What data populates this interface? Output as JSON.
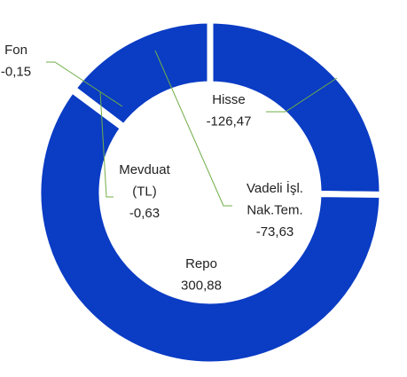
{
  "chart_data": {
    "type": "donut",
    "categories": [
      [
        "Hisse"
      ],
      [
        "Repo"
      ],
      [
        "Mevduat",
        "(TL)"
      ],
      [
        "Fon"
      ],
      [
        "Vadeli İşl.",
        "Nak.Tem."
      ]
    ],
    "values": [
      -126.47,
      300.88,
      -0.63,
      -0.15,
      -73.63
    ],
    "value_labels": [
      "-126,47",
      "300,88",
      "-0,63",
      "-0,15",
      "-73,63"
    ],
    "color": "#0a3cc4"
  }
}
